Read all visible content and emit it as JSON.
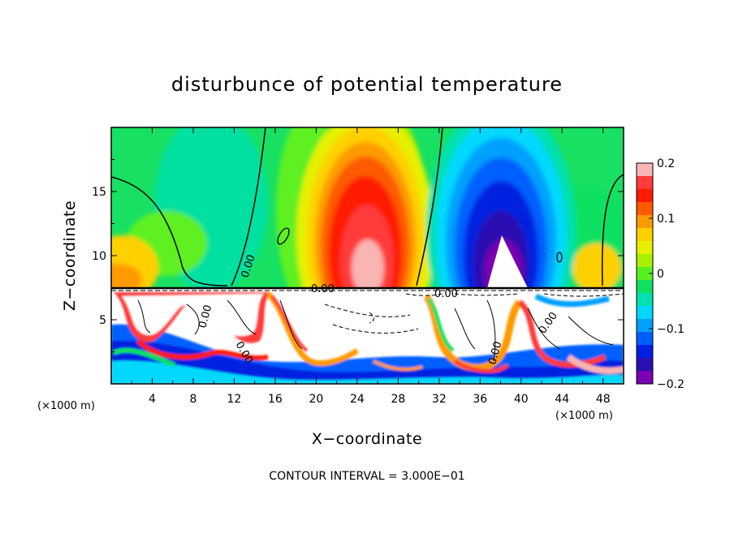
{
  "chart_data": {
    "type": "heatmap",
    "title": "disturbunce of potential temperature",
    "xlabel": "X−coordinate",
    "ylabel": "Z−coordinate",
    "x_unit": "(×1000 m)",
    "xlim": [
      0,
      50
    ],
    "ylim": [
      0,
      20
    ],
    "x_ticks": [
      4,
      8,
      12,
      16,
      20,
      24,
      28,
      32,
      36,
      40,
      44,
      48
    ],
    "x_tick_labels": [
      "4",
      "8",
      "12",
      "16",
      "20",
      "24",
      "28",
      "32",
      "36",
      "40",
      "44",
      "48"
    ],
    "y_ticks": [
      5,
      10,
      15
    ],
    "y_tick_labels": [
      "5",
      "10",
      "15"
    ],
    "colorbar": {
      "min": -0.2,
      "max": 0.2,
      "ticks": [
        0.2,
        0.1,
        0,
        -0.1,
        -0.2
      ],
      "tick_labels": [
        "0.2",
        "0.1",
        "0",
        "−0.1",
        "−0.2"
      ],
      "colors": [
        "#f9b4b4",
        "#ff3a3a",
        "#ff1a00",
        "#ff5a00",
        "#ff9a00",
        "#ffd000",
        "#e6f000",
        "#a8f000",
        "#5af020",
        "#10e060",
        "#00e0b0",
        "#00d8ff",
        "#00a0ff",
        "#0060ff",
        "#0020e0",
        "#2a10b0",
        "#7a00b0"
      ]
    },
    "features": {
      "warm_anomaly_peak": {
        "x": 25,
        "z": 10,
        "value": 0.2
      },
      "cold_anomaly_peak": {
        "x": 38,
        "z": 10,
        "value": -0.2
      }
    },
    "contour_labels": [
      "0.00",
      "0.00",
      "0.00",
      "0.00",
      "0.00",
      "0.00",
      "0.00"
    ],
    "note": "CONTOUR INTERVAL = 3.000E−01"
  }
}
